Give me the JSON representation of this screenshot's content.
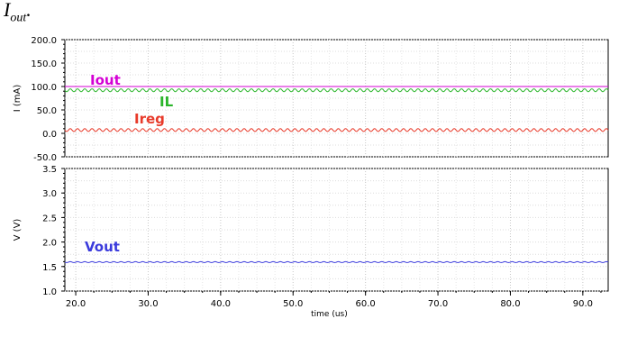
{
  "caption": {
    "main": "I",
    "sub": "out",
    "tail": "."
  },
  "chart_data": [
    {
      "type": "line",
      "title": "",
      "xlabel": "",
      "ylabel": "I (mA)",
      "ylim": [
        -50,
        200
      ],
      "yticks": [
        "200.0",
        "150.0",
        "100.0",
        "50.0",
        "0.0",
        "-50.0"
      ],
      "ytick_values": [
        200,
        150,
        100,
        50,
        0,
        -50
      ],
      "xlim": [
        18.5,
        93.5
      ],
      "grid": true,
      "series": [
        {
          "name": "Iout",
          "color": "#d400d4",
          "mean": 100,
          "ripple": 0
        },
        {
          "name": "IL",
          "color": "#2ab52a",
          "mean": 92,
          "ripple": 3
        },
        {
          "name": "Ireg",
          "color": "#e83a2a",
          "mean": 7,
          "ripple": 3
        }
      ]
    },
    {
      "type": "line",
      "title": "",
      "xlabel": "time (us)",
      "ylabel": "V (V)",
      "ylim": [
        1.0,
        3.5
      ],
      "yticks": [
        "3.5",
        "3.0",
        "2.5",
        "2.0",
        "1.5",
        "1.0"
      ],
      "ytick_values": [
        3.5,
        3.0,
        2.5,
        2.0,
        1.5,
        1.0
      ],
      "xlim": [
        18.5,
        93.5
      ],
      "xticks": [
        "20.0",
        "30.0",
        "40.0",
        "50.0",
        "60.0",
        "70.0",
        "80.0",
        "90.0"
      ],
      "xtick_values": [
        20,
        30,
        40,
        50,
        60,
        70,
        80,
        90
      ],
      "grid": true,
      "series": [
        {
          "name": "Vout",
          "color": "#3a3adc",
          "mean": 1.59,
          "ripple": 0.01
        }
      ]
    }
  ],
  "ripple_period_us": 1.0
}
